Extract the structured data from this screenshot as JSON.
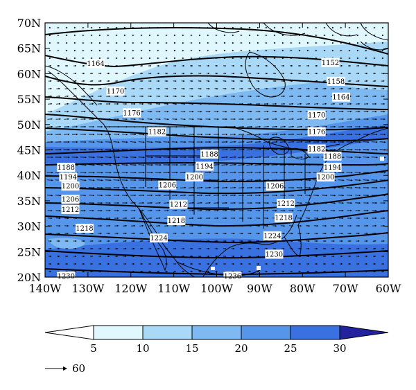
{
  "map": {
    "lat_labels": [
      "70N",
      "65N",
      "60N",
      "55N",
      "50N",
      "45N",
      "40N",
      "35N",
      "30N",
      "25N",
      "20N"
    ],
    "lon_labels": [
      "140W",
      "130W",
      "120W",
      "110W",
      "100W",
      "90W",
      "80W",
      "70W",
      "60W"
    ],
    "contour_labels": [
      {
        "text": "1152",
        "lon": -73.5,
        "lat": 62.2
      },
      {
        "text": "1158",
        "lon": -72.2,
        "lat": 58.5
      },
      {
        "text": "1164",
        "lon": -128.2,
        "lat": 62.0
      },
      {
        "text": "1164",
        "lon": -71.0,
        "lat": 55.4
      },
      {
        "text": "1170",
        "lon": -123.6,
        "lat": 56.6
      },
      {
        "text": "1170",
        "lon": -76.7,
        "lat": 51.9
      },
      {
        "text": "1176",
        "lon": -119.8,
        "lat": 52.3
      },
      {
        "text": "1176",
        "lon": -76.7,
        "lat": 48.6
      },
      {
        "text": "1182",
        "lon": -113.9,
        "lat": 48.6
      },
      {
        "text": "1182",
        "lon": -76.7,
        "lat": 45.2
      },
      {
        "text": "1188",
        "lon": -101.7,
        "lat": 44.2
      },
      {
        "text": "1188",
        "lon": -73.0,
        "lat": 43.8
      },
      {
        "text": "1188",
        "lon": -135.1,
        "lat": 41.6
      },
      {
        "text": "1194",
        "lon": -102.8,
        "lat": 41.8
      },
      {
        "text": "1194",
        "lon": -73.0,
        "lat": 41.6
      },
      {
        "text": "1194",
        "lon": -134.6,
        "lat": 39.7
      },
      {
        "text": "1200",
        "lon": -105.2,
        "lat": 39.7
      },
      {
        "text": "1200",
        "lon": -74.6,
        "lat": 39.7
      },
      {
        "text": "1200",
        "lon": -134.1,
        "lat": 37.9
      },
      {
        "text": "1206",
        "lon": -111.5,
        "lat": 38.1
      },
      {
        "text": "1206",
        "lon": -86.4,
        "lat": 37.9
      },
      {
        "text": "1206",
        "lon": -134.1,
        "lat": 35.3
      },
      {
        "text": "1212",
        "lon": -108.9,
        "lat": 34.3
      },
      {
        "text": "1212",
        "lon": -83.9,
        "lat": 34.5
      },
      {
        "text": "1212",
        "lon": -134.1,
        "lat": 33.3
      },
      {
        "text": "1218",
        "lon": -109.4,
        "lat": 31.1
      },
      {
        "text": "1218",
        "lon": -84.4,
        "lat": 31.7
      },
      {
        "text": "1218",
        "lon": -130.8,
        "lat": 29.6
      },
      {
        "text": "1224",
        "lon": -113.5,
        "lat": 27.7
      },
      {
        "text": "1224",
        "lon": -87.0,
        "lat": 28.1
      },
      {
        "text": "1230",
        "lon": -86.6,
        "lat": 24.5
      },
      {
        "text": "1230",
        "lon": -135.1,
        "lat": 20.2
      },
      {
        "text": "1236",
        "lon": -96.3,
        "lat": 20.2
      }
    ]
  },
  "colorbar": {
    "ticks": [
      "5",
      "10",
      "15",
      "20",
      "25",
      "30"
    ],
    "colors": [
      "#ffffff",
      "#e0f7fd",
      "#a9d9f7",
      "#7eb9f2",
      "#5595ea",
      "#3a71e0",
      "#23229e"
    ]
  },
  "wind_legend": {
    "value": "60"
  }
}
